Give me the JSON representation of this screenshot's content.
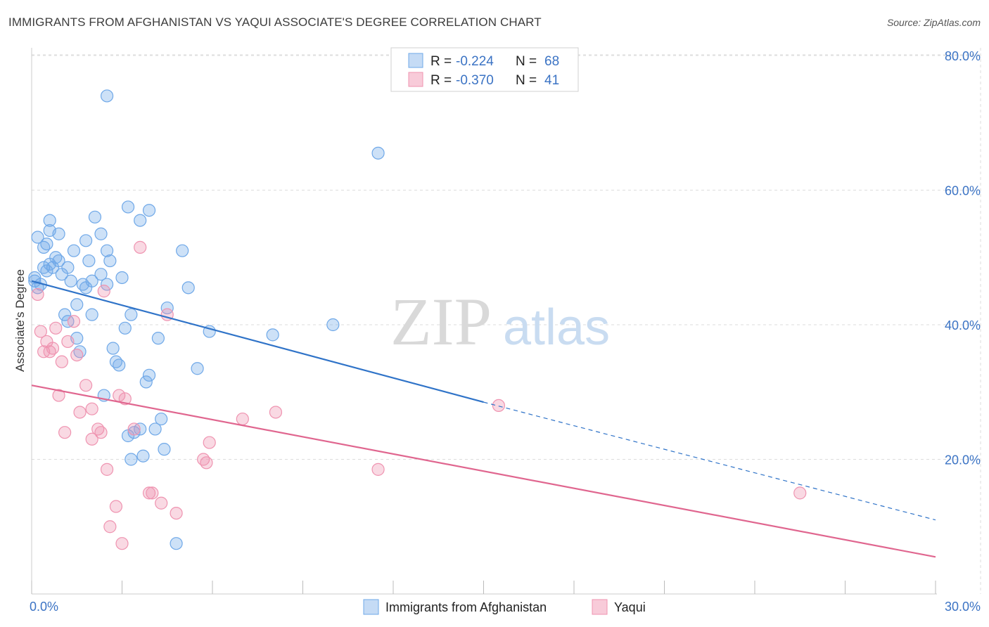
{
  "header": {
    "title": "IMMIGRANTS FROM AFGHANISTAN VS YAQUI ASSOCIATE'S DEGREE CORRELATION CHART",
    "source": "Source: ZipAtlas.com"
  },
  "colors": {
    "blue": "#6fa8e8",
    "blue_line": "#2f73c8",
    "pink": "#ef93b0",
    "pink_line": "#e0668f",
    "tick_text": "#3b73c4",
    "grid": "#dddddd"
  },
  "legend": {
    "rows": [
      {
        "r_label": "R =",
        "r_value": "-0.224",
        "n_label": "N =",
        "n_value": "68"
      },
      {
        "r_label": "R =",
        "r_value": "-0.370",
        "n_label": "N =",
        "n_value": "41"
      }
    ]
  },
  "chart_data": {
    "type": "scatter",
    "ylabel": "Associate's Degree",
    "xlim": [
      0,
      30
    ],
    "ylim": [
      0,
      80
    ],
    "grid": true,
    "legend_placement": "top-center",
    "x_tick_labels": [
      "0.0%",
      "30.0%"
    ],
    "y_tick_labels": [
      "20.0%",
      "40.0%",
      "60.0%",
      "80.0%"
    ],
    "y_ticks": [
      20,
      40,
      60,
      80
    ],
    "series": [
      {
        "name": "Immigrants from Afghanistan",
        "color": "blue",
        "points": [
          [
            0.1,
            46.5
          ],
          [
            0.1,
            47.0
          ],
          [
            0.2,
            45.5
          ],
          [
            0.2,
            53.0
          ],
          [
            0.3,
            46.0
          ],
          [
            0.4,
            51.5
          ],
          [
            0.4,
            48.5
          ],
          [
            0.5,
            52.0
          ],
          [
            0.5,
            48.0
          ],
          [
            0.6,
            54.0
          ],
          [
            0.6,
            55.5
          ],
          [
            0.6,
            49.0
          ],
          [
            0.7,
            48.5
          ],
          [
            0.8,
            50.0
          ],
          [
            0.9,
            53.5
          ],
          [
            0.9,
            49.5
          ],
          [
            1.0,
            47.5
          ],
          [
            1.1,
            41.5
          ],
          [
            1.2,
            48.5
          ],
          [
            1.2,
            40.5
          ],
          [
            1.3,
            46.5
          ],
          [
            1.4,
            51.0
          ],
          [
            1.5,
            43.0
          ],
          [
            1.5,
            38.0
          ],
          [
            1.6,
            36.0
          ],
          [
            1.7,
            46.0
          ],
          [
            1.8,
            52.5
          ],
          [
            1.8,
            45.5
          ],
          [
            1.9,
            49.5
          ],
          [
            2.0,
            46.5
          ],
          [
            2.0,
            41.5
          ],
          [
            2.1,
            56.0
          ],
          [
            2.3,
            53.5
          ],
          [
            2.3,
            47.5
          ],
          [
            2.4,
            29.5
          ],
          [
            2.5,
            51.0
          ],
          [
            2.6,
            49.5
          ],
          [
            2.5,
            74.0
          ],
          [
            2.5,
            46.0
          ],
          [
            2.7,
            36.5
          ],
          [
            2.8,
            34.5
          ],
          [
            2.9,
            34.0
          ],
          [
            3.0,
            47.0
          ],
          [
            3.1,
            39.5
          ],
          [
            3.2,
            23.5
          ],
          [
            3.2,
            57.5
          ],
          [
            3.3,
            41.5
          ],
          [
            3.3,
            20.0
          ],
          [
            3.4,
            24.0
          ],
          [
            3.6,
            24.5
          ],
          [
            3.6,
            55.5
          ],
          [
            3.7,
            20.5
          ],
          [
            3.8,
            31.5
          ],
          [
            3.9,
            32.5
          ],
          [
            3.9,
            57.0
          ],
          [
            4.1,
            24.5
          ],
          [
            4.2,
            38.0
          ],
          [
            4.3,
            26.0
          ],
          [
            4.4,
            21.5
          ],
          [
            4.5,
            42.5
          ],
          [
            4.8,
            7.5
          ],
          [
            5.0,
            51.0
          ],
          [
            5.2,
            45.5
          ],
          [
            5.9,
            39.0
          ],
          [
            8.0,
            38.5
          ],
          [
            10.0,
            40.0
          ],
          [
            11.5,
            65.5
          ],
          [
            5.5,
            33.5
          ]
        ],
        "trend": {
          "x_start": 0,
          "y_start": 46.5,
          "x_end": 15.0,
          "y_end": 28.5,
          "dashed_to_x": 30,
          "dashed_to_y": 11.0
        }
      },
      {
        "name": "Yaqui",
        "color": "pink",
        "points": [
          [
            0.2,
            44.5
          ],
          [
            0.3,
            39.0
          ],
          [
            0.4,
            36.0
          ],
          [
            0.5,
            37.5
          ],
          [
            0.6,
            36.0
          ],
          [
            0.7,
            36.5
          ],
          [
            0.8,
            39.5
          ],
          [
            0.9,
            29.5
          ],
          [
            1.0,
            34.5
          ],
          [
            1.2,
            37.5
          ],
          [
            1.4,
            40.5
          ],
          [
            1.5,
            35.5
          ],
          [
            1.6,
            27.0
          ],
          [
            1.8,
            31.0
          ],
          [
            2.0,
            27.5
          ],
          [
            2.0,
            23.0
          ],
          [
            2.2,
            24.5
          ],
          [
            2.3,
            24.0
          ],
          [
            2.4,
            45.0
          ],
          [
            2.5,
            18.5
          ],
          [
            2.6,
            10.0
          ],
          [
            2.8,
            13.0
          ],
          [
            2.9,
            29.5
          ],
          [
            3.0,
            7.5
          ],
          [
            3.1,
            29.0
          ],
          [
            3.4,
            24.5
          ],
          [
            3.6,
            51.5
          ],
          [
            3.9,
            15.0
          ],
          [
            4.0,
            15.0
          ],
          [
            4.3,
            13.5
          ],
          [
            4.5,
            41.5
          ],
          [
            4.8,
            12.0
          ],
          [
            5.7,
            20.0
          ],
          [
            5.8,
            19.5
          ],
          [
            5.9,
            22.5
          ],
          [
            7.0,
            26.0
          ],
          [
            8.1,
            27.0
          ],
          [
            11.5,
            18.5
          ],
          [
            15.5,
            28.0
          ],
          [
            25.5,
            15.0
          ],
          [
            1.1,
            24.0
          ]
        ],
        "trend": {
          "x_start": 0,
          "y_start": 31.0,
          "x_end": 30,
          "y_end": 5.5
        }
      }
    ]
  },
  "watermark": {
    "zip": "ZIP",
    "atlas": "atlas"
  }
}
